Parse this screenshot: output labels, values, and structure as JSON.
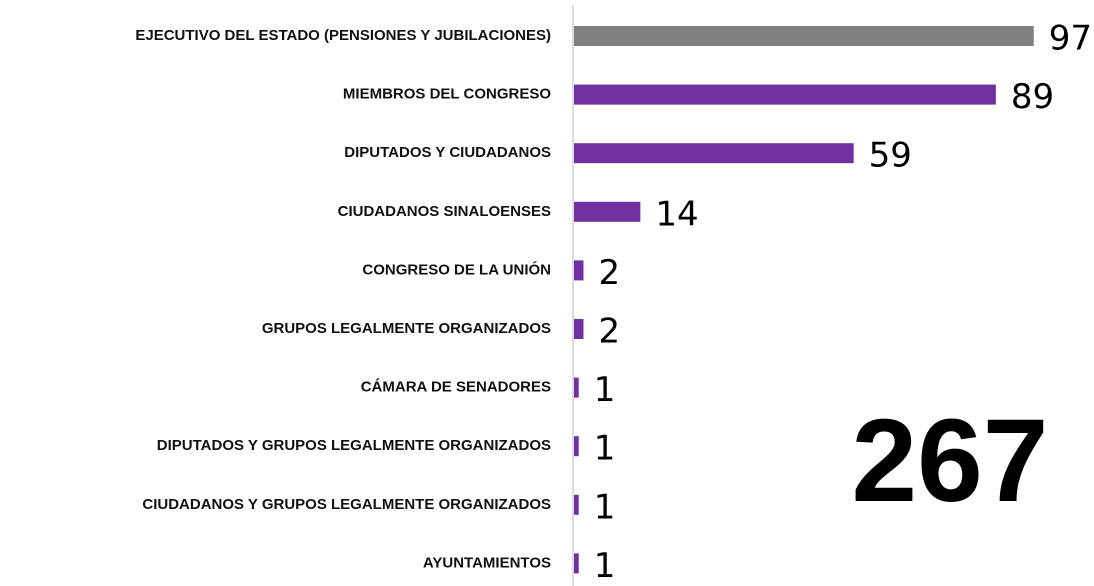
{
  "chart_data": {
    "type": "hbar",
    "categories": [
      "EJECUTIVO DEL ESTADO (PENSIONES Y JUBILACIONES)",
      "MIEMBROS DEL CONGRESO",
      "DIPUTADOS Y CIUDADANOS",
      "CIUDADANOS SINALOENSES",
      "CONGRESO DE LA UNIÓN",
      "GRUPOS LEGALMENTE ORGANIZADOS",
      "CÁMARA DE SENADORES",
      "DIPUTADOS Y GRUPOS LEGALMENTE ORGANIZADOS",
      "CIUDADANOS Y GRUPOS LEGALMENTE ORGANIZADOS",
      "AYUNTAMIENTOS"
    ],
    "values": [
      97,
      89,
      59,
      14,
      2,
      2,
      1,
      1,
      1,
      1
    ],
    "colors": [
      "#808080",
      "#7030a0",
      "#7030a0",
      "#7030a0",
      "#7030a0",
      "#7030a0",
      "#7030a0",
      "#7030a0",
      "#7030a0",
      "#7030a0"
    ],
    "xlim": [
      0,
      100
    ],
    "annotation": "267"
  }
}
